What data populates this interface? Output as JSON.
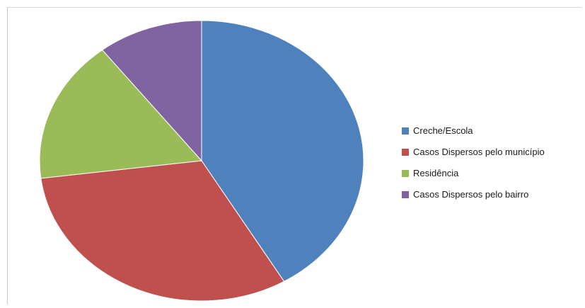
{
  "chart_data": {
    "type": "pie",
    "title": "",
    "start_angle": 0,
    "direction": "clockwise",
    "legend_position": "right",
    "slices": [
      {
        "label": "Creche/Escola",
        "value": 41.5,
        "color": "#4F81BD"
      },
      {
        "label": "Casos Dispersos pelo município",
        "value": 31.5,
        "color": "#C0504D"
      },
      {
        "label": "Residência",
        "value": 16.5,
        "color": "#9BBB59"
      },
      {
        "label": "Casos Dispersos pelo bairro",
        "value": 10.5,
        "color": "#8064A2"
      }
    ]
  }
}
